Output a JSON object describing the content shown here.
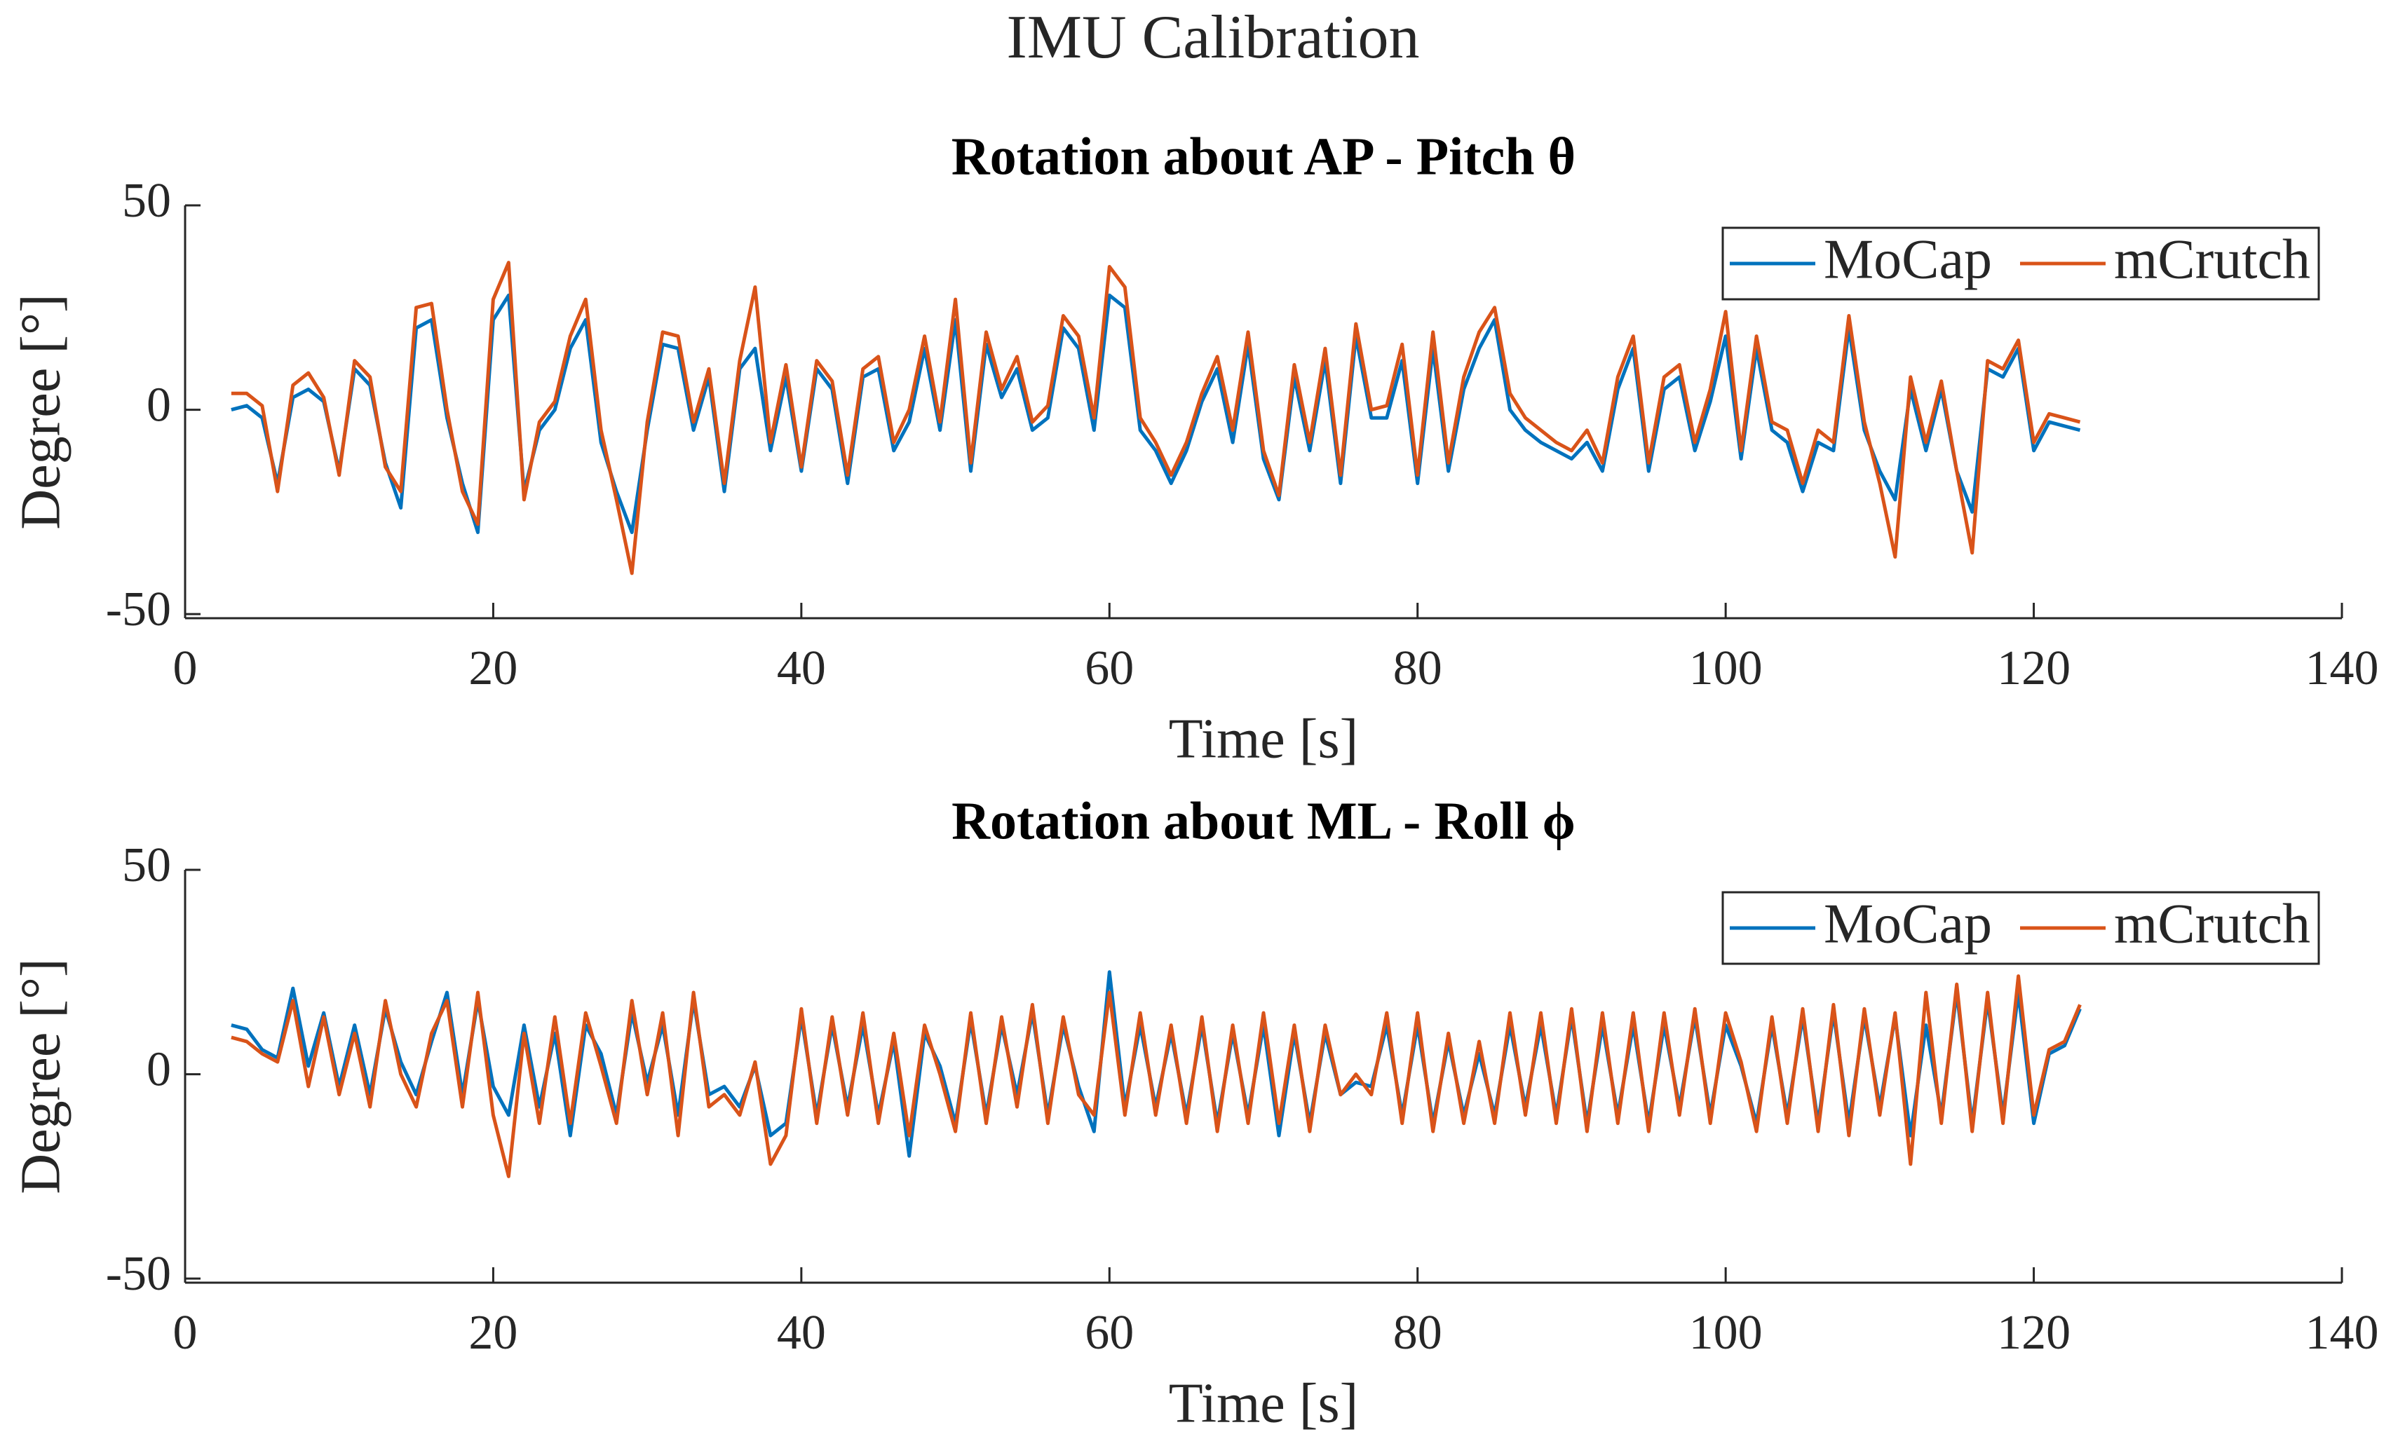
{
  "title": "IMU Calibration",
  "chart_data": [
    {
      "type": "line",
      "title": "Rotation about AP - Pitch θ",
      "xlabel": "Time [s]",
      "ylabel": "Degree [°]",
      "xlim": [
        0,
        140
      ],
      "xticks": [
        0,
        20,
        40,
        60,
        80,
        100,
        120,
        140
      ],
      "ylim": [
        -51,
        50
      ],
      "yticks": [
        -50,
        0,
        50
      ],
      "legend": "upper right",
      "x": [
        3,
        4,
        5,
        6,
        7,
        8,
        9,
        10,
        11,
        12,
        13,
        14,
        15,
        16,
        17,
        18,
        19,
        20,
        21,
        22,
        23,
        24,
        25,
        26,
        27,
        28,
        29,
        30,
        31,
        32,
        33,
        34,
        35,
        36,
        37,
        38,
        39,
        40,
        41,
        42,
        43,
        44,
        45,
        46,
        47,
        48,
        49,
        50,
        51,
        52,
        53,
        54,
        55,
        56,
        57,
        58,
        59,
        60,
        61,
        62,
        63,
        64,
        65,
        66,
        67,
        68,
        69,
        70,
        71,
        72,
        73,
        74,
        75,
        76,
        77,
        78,
        79,
        80,
        81,
        82,
        83,
        84,
        85,
        86,
        87,
        88,
        89,
        90,
        91,
        92,
        93,
        94,
        95,
        96,
        97,
        98,
        99,
        100,
        101,
        102,
        103,
        104,
        105,
        106,
        107,
        108,
        109,
        110,
        111,
        112,
        113,
        114,
        115,
        116,
        117,
        118,
        119,
        120,
        121,
        122,
        123
      ],
      "series": [
        {
          "name": "MoCap",
          "color": "#0072bd",
          "values": [
            0,
            1,
            -2,
            -18,
            3,
            5,
            2,
            -15,
            10,
            6,
            -13,
            -24,
            20,
            22,
            -2,
            -18,
            -30,
            22,
            28,
            -20,
            -5,
            0,
            15,
            22,
            -8,
            -20,
            -30,
            -5,
            16,
            15,
            -5,
            8,
            -20,
            10,
            15,
            -10,
            8,
            -15,
            10,
            5,
            -18,
            8,
            10,
            -10,
            -3,
            15,
            -5,
            22,
            -15,
            16,
            3,
            10,
            -5,
            -2,
            20,
            15,
            -5,
            28,
            25,
            -5,
            -10,
            -18,
            -10,
            2,
            10,
            -8,
            16,
            -12,
            -22,
            8,
            -10,
            12,
            -18,
            18,
            -2,
            -2,
            12,
            -18,
            15,
            -15,
            5,
            15,
            22,
            0,
            -5,
            -8,
            -10,
            -12,
            -8,
            -15,
            5,
            15,
            -15,
            5,
            8,
            -10,
            2,
            18,
            -12,
            15,
            -5,
            -8,
            -20,
            -8,
            -10,
            20,
            -5,
            -15,
            -22,
            5,
            -10,
            5,
            -15,
            -25,
            10,
            8,
            15,
            -10,
            -3,
            -4,
            -5
          ]
        },
        {
          "name": "mCrutch",
          "color": "#d95319",
          "values": [
            4,
            4,
            1,
            -20,
            6,
            9,
            3,
            -16,
            12,
            8,
            -14,
            -20,
            25,
            26,
            0,
            -20,
            -28,
            27,
            36,
            -22,
            -3,
            2,
            18,
            27,
            -5,
            -22,
            -40,
            -3,
            19,
            18,
            -3,
            10,
            -18,
            12,
            30,
            -8,
            11,
            -14,
            12,
            7,
            -16,
            10,
            13,
            -8,
            0,
            18,
            -3,
            27,
            -13,
            19,
            5,
            13,
            -3,
            1,
            23,
            18,
            -2,
            35,
            30,
            -2,
            -8,
            -16,
            -8,
            4,
            13,
            -5,
            19,
            -10,
            -21,
            11,
            -8,
            15,
            -16,
            21,
            0,
            1,
            16,
            -16,
            19,
            -13,
            8,
            19,
            25,
            4,
            -2,
            -5,
            -8,
            -10,
            -5,
            -13,
            8,
            18,
            -13,
            8,
            11,
            -8,
            5,
            24,
            -10,
            18,
            -3,
            -5,
            -18,
            -5,
            -8,
            23,
            -3,
            -18,
            -36,
            8,
            -8,
            7,
            -15,
            -35,
            12,
            10,
            17,
            -8,
            -1,
            -2,
            -3
          ]
        }
      ]
    },
    {
      "type": "line",
      "title": "Rotation about ML - Roll ϕ",
      "xlabel": "Time [s]",
      "ylabel": "Degree [°]",
      "xlim": [
        0,
        140
      ],
      "xticks": [
        0,
        20,
        40,
        60,
        80,
        100,
        120,
        140
      ],
      "ylim": [
        -51,
        50
      ],
      "yticks": [
        -50,
        0,
        50
      ],
      "legend": "upper right",
      "x": [
        3,
        4,
        5,
        6,
        7,
        8,
        9,
        10,
        11,
        12,
        13,
        14,
        15,
        16,
        17,
        18,
        19,
        20,
        21,
        22,
        23,
        24,
        25,
        26,
        27,
        28,
        29,
        30,
        31,
        32,
        33,
        34,
        35,
        36,
        37,
        38,
        39,
        40,
        41,
        42,
        43,
        44,
        45,
        46,
        47,
        48,
        49,
        50,
        51,
        52,
        53,
        54,
        55,
        56,
        57,
        58,
        59,
        60,
        61,
        62,
        63,
        64,
        65,
        66,
        67,
        68,
        69,
        70,
        71,
        72,
        73,
        74,
        75,
        76,
        77,
        78,
        79,
        80,
        81,
        82,
        83,
        84,
        85,
        86,
        87,
        88,
        89,
        90,
        91,
        92,
        93,
        94,
        95,
        96,
        97,
        98,
        99,
        100,
        101,
        102,
        103,
        104,
        105,
        106,
        107,
        108,
        109,
        110,
        111,
        112,
        113,
        114,
        115,
        116,
        117,
        118,
        119,
        120,
        121,
        122,
        123
      ],
      "series": [
        {
          "name": "MoCap",
          "color": "#0072bd",
          "values": [
            12,
            11,
            6,
            4,
            21,
            2,
            15,
            -3,
            12,
            -5,
            16,
            3,
            -5,
            8,
            20,
            -5,
            18,
            -3,
            -10,
            12,
            -8,
            10,
            -15,
            12,
            5,
            -10,
            15,
            -2,
            12,
            -10,
            18,
            -5,
            -3,
            -8,
            2,
            -15,
            -12,
            14,
            -10,
            12,
            -8,
            12,
            -10,
            8,
            -20,
            10,
            2,
            -12,
            13,
            -10,
            12,
            -5,
            15,
            -10,
            12,
            -3,
            -14,
            25,
            -8,
            12,
            -8,
            10,
            -10,
            12,
            -12,
            10,
            -10,
            12,
            -15,
            10,
            -12,
            10,
            -5,
            -2,
            -3,
            12,
            -10,
            12,
            -12,
            8,
            -10,
            5,
            -10,
            12,
            -8,
            12,
            -10,
            14,
            -12,
            12,
            -10,
            12,
            -12,
            12,
            -8,
            14,
            -10,
            12,
            2,
            -12,
            12,
            -10,
            14,
            -12,
            15,
            -12,
            14,
            -8,
            14,
            -15,
            12,
            -10,
            20,
            -12,
            18,
            -10,
            20,
            -12,
            5,
            7,
            16
          ]
        },
        {
          "name": "mCrutch",
          "color": "#d95319",
          "values": [
            9,
            8,
            5,
            3,
            18,
            -3,
            14,
            -5,
            10,
            -8,
            18,
            0,
            -8,
            10,
            18,
            -8,
            20,
            -10,
            -25,
            10,
            -12,
            14,
            -12,
            15,
            2,
            -12,
            18,
            -5,
            15,
            -15,
            20,
            -8,
            -5,
            -10,
            3,
            -22,
            -15,
            16,
            -12,
            14,
            -10,
            15,
            -12,
            10,
            -15,
            12,
            0,
            -14,
            15,
            -12,
            14,
            -8,
            17,
            -12,
            14,
            -5,
            -10,
            20,
            -10,
            15,
            -10,
            12,
            -12,
            14,
            -14,
            12,
            -12,
            15,
            -12,
            12,
            -14,
            12,
            -5,
            0,
            -5,
            15,
            -12,
            15,
            -14,
            10,
            -12,
            8,
            -12,
            15,
            -10,
            15,
            -12,
            16,
            -14,
            15,
            -12,
            15,
            -14,
            15,
            -10,
            16,
            -12,
            15,
            3,
            -14,
            14,
            -12,
            16,
            -14,
            17,
            -15,
            16,
            -10,
            15,
            -22,
            20,
            -12,
            22,
            -14,
            20,
            -12,
            24,
            -10,
            6,
            8,
            17
          ]
        }
      ]
    }
  ]
}
